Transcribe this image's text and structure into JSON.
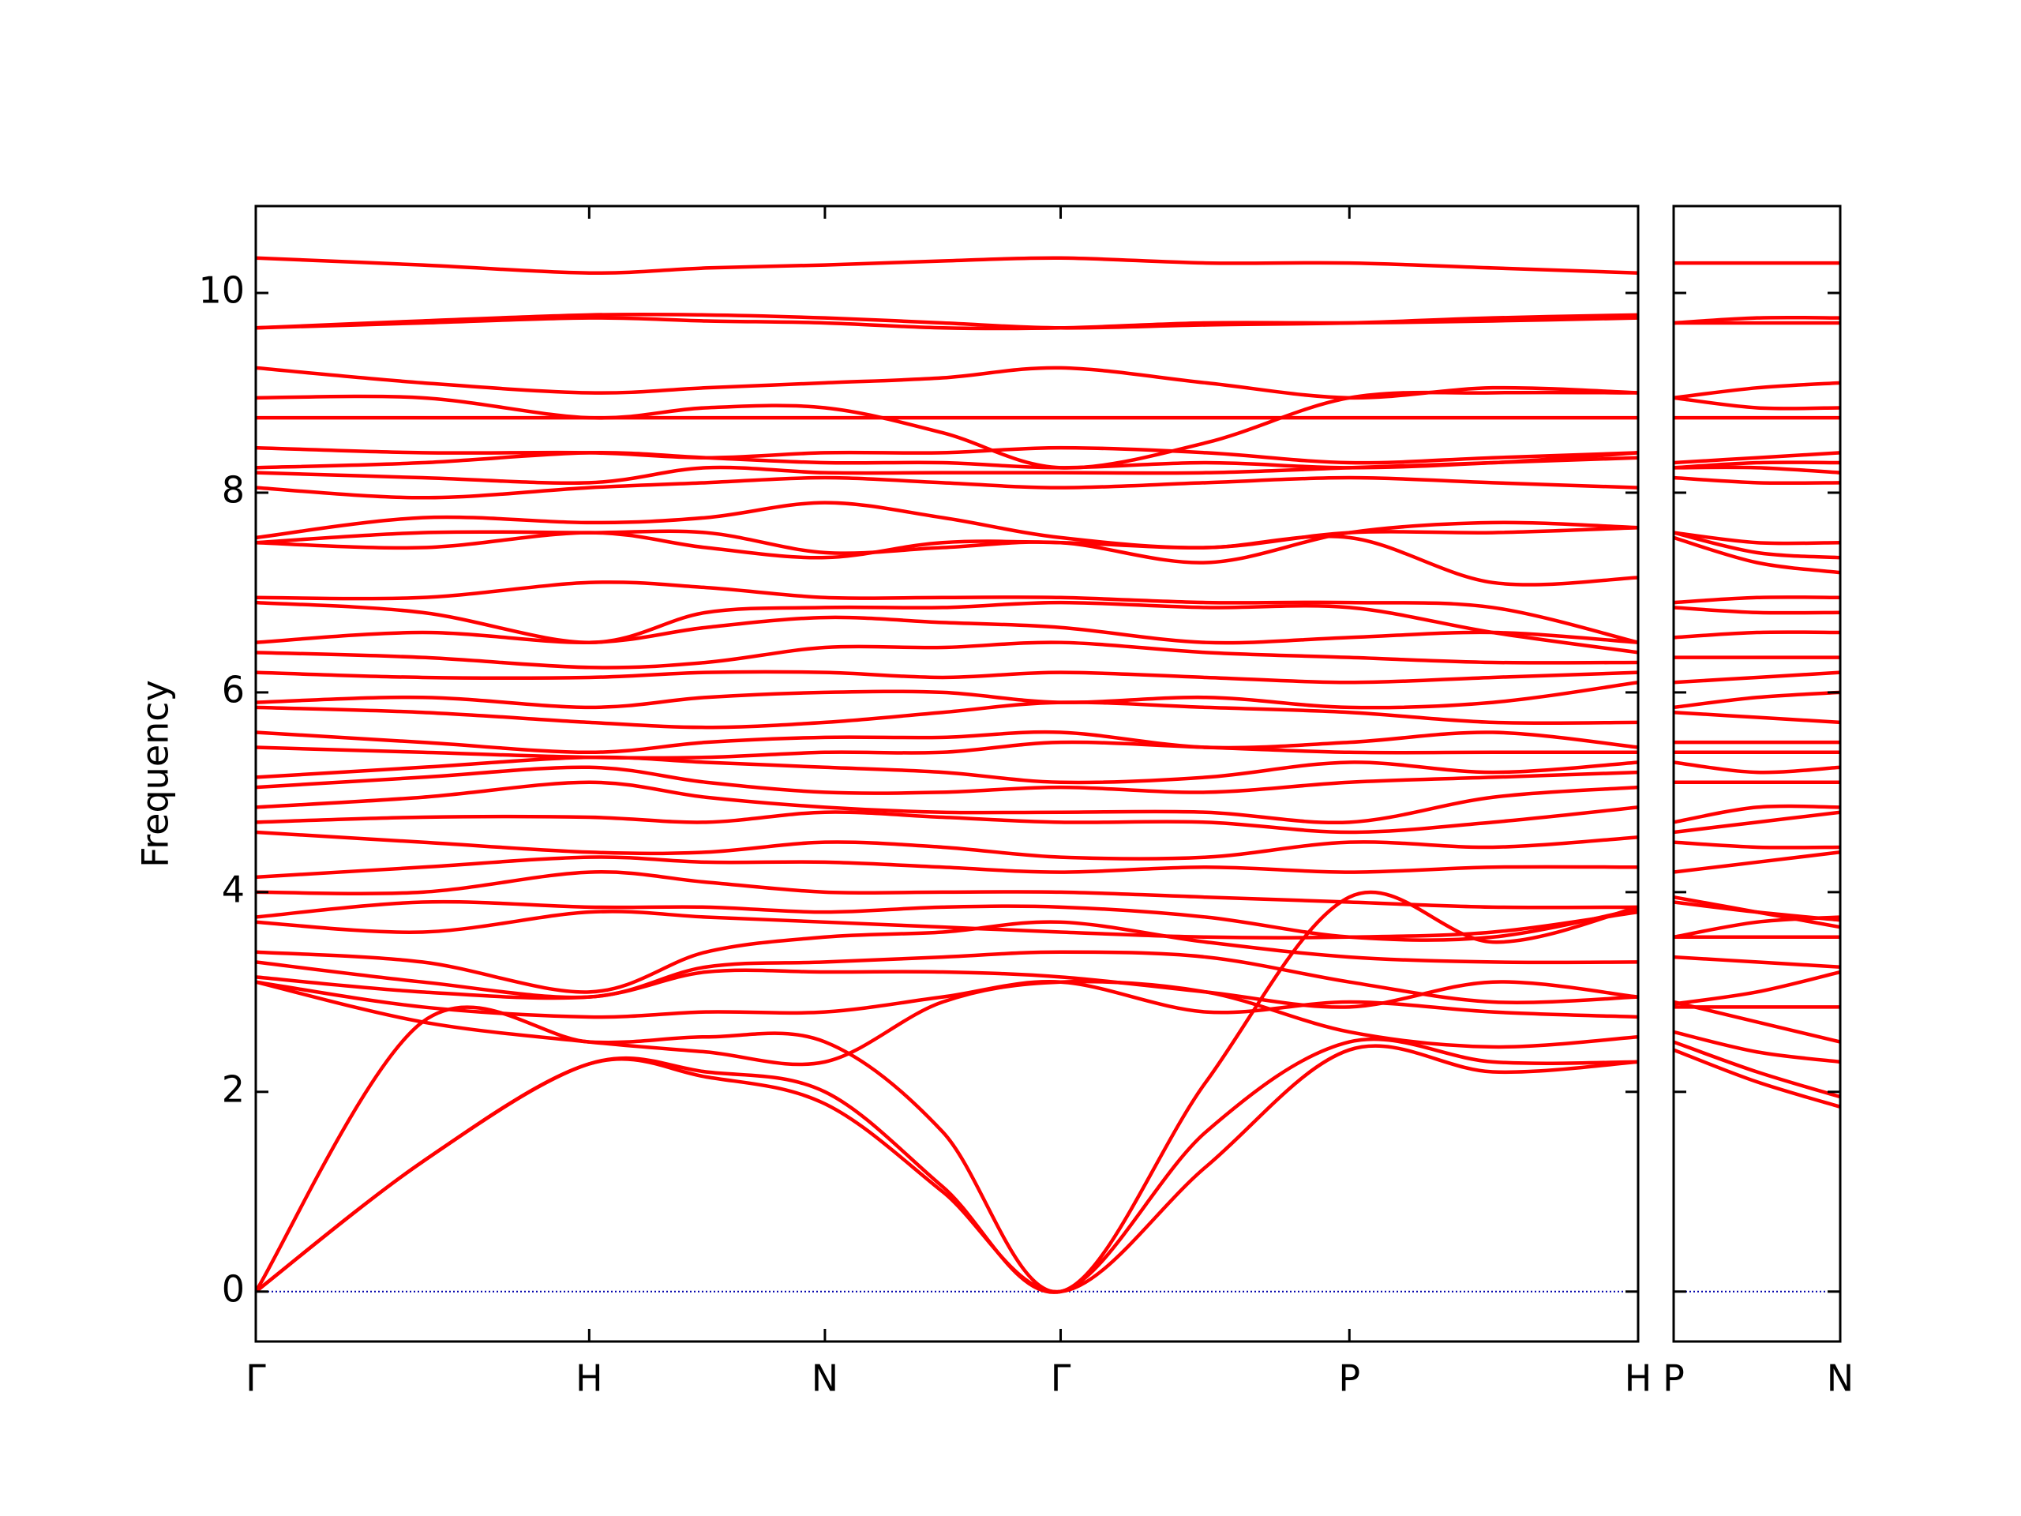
{
  "chart_data": [
    {
      "type": "line",
      "ylabel": "Frequency",
      "color": "#ff0000",
      "zero_line_color": "#0000aa",
      "xlim": [
        0,
        4.146
      ],
      "ylim": [
        -0.5,
        10.87
      ],
      "yticks": [
        0,
        2,
        4,
        6,
        8,
        10
      ],
      "ytick_labels": true,
      "xticks": [
        {
          "value": 0,
          "label": "Γ"
        },
        {
          "value": 1,
          "label": "H"
        },
        {
          "value": 1.707,
          "label": "N"
        },
        {
          "value": 2.414,
          "label": "Γ"
        },
        {
          "value": 3.28,
          "label": "P"
        },
        {
          "value": 4.146,
          "label": "H"
        }
      ],
      "x": [
        0,
        0.5,
        1,
        1.35,
        1.707,
        2.06,
        2.414,
        2.85,
        3.28,
        3.71,
        4.146
      ],
      "series": [
        {
          "values": [
            0,
            1.3,
            2.28,
            2.15,
            1.88,
            1.0,
            0,
            1.25,
            2.42,
            2.2,
            2.3
          ]
        },
        {
          "values": [
            0,
            1.3,
            2.28,
            2.2,
            2.0,
            1.05,
            0,
            1.6,
            2.5,
            2.3,
            2.3
          ]
        },
        {
          "values": [
            0,
            2.7,
            2.5,
            2.55,
            2.5,
            1.6,
            0,
            2.1,
            3.95,
            3.5,
            3.85
          ]
        },
        {
          "values": [
            3.1,
            2.7,
            2.5,
            2.4,
            2.3,
            2.9,
            3.1,
            3.0,
            2.6,
            2.45,
            2.55
          ]
        },
        {
          "values": [
            3.1,
            2.85,
            2.75,
            2.8,
            2.8,
            2.95,
            3.1,
            2.8,
            2.9,
            2.8,
            2.75
          ]
        },
        {
          "values": [
            3.15,
            3.0,
            2.95,
            3.2,
            3.2,
            3.2,
            3.15,
            3.0,
            2.85,
            3.1,
            2.95
          ]
        },
        {
          "values": [
            3.3,
            3.1,
            2.95,
            3.25,
            3.3,
            3.35,
            3.4,
            3.35,
            3.1,
            2.9,
            2.95
          ]
        },
        {
          "values": [
            3.4,
            3.3,
            3.0,
            3.4,
            3.55,
            3.6,
            3.7,
            3.5,
            3.35,
            3.3,
            3.3
          ]
        },
        {
          "values": [
            3.7,
            3.6,
            3.8,
            3.75,
            3.7,
            3.65,
            3.6,
            3.55,
            3.55,
            3.6,
            3.8
          ]
        },
        {
          "values": [
            3.75,
            3.9,
            3.85,
            3.85,
            3.8,
            3.85,
            3.85,
            3.75,
            3.55,
            3.55,
            3.83
          ]
        },
        {
          "values": [
            4.0,
            4.0,
            4.2,
            4.1,
            4.0,
            4.0,
            4.0,
            3.95,
            3.9,
            3.85,
            3.85
          ]
        },
        {
          "values": [
            4.15,
            4.25,
            4.35,
            4.3,
            4.3,
            4.25,
            4.2,
            4.25,
            4.2,
            4.25,
            4.25
          ]
        },
        {
          "values": [
            4.6,
            4.5,
            4.4,
            4.4,
            4.5,
            4.45,
            4.35,
            4.35,
            4.5,
            4.45,
            4.55
          ]
        },
        {
          "values": [
            4.7,
            4.75,
            4.75,
            4.7,
            4.8,
            4.75,
            4.7,
            4.7,
            4.6,
            4.7,
            4.85
          ]
        },
        {
          "values": [
            4.85,
            4.95,
            5.1,
            4.95,
            4.85,
            4.8,
            4.8,
            4.8,
            4.7,
            4.95,
            5.05
          ]
        },
        {
          "values": [
            5.05,
            5.15,
            5.25,
            5.1,
            5.0,
            5.0,
            5.05,
            5.0,
            5.1,
            5.15,
            5.2
          ]
        },
        {
          "values": [
            5.15,
            5.25,
            5.35,
            5.3,
            5.25,
            5.2,
            5.1,
            5.15,
            5.3,
            5.2,
            5.3
          ]
        },
        {
          "values": [
            5.45,
            5.4,
            5.35,
            5.35,
            5.4,
            5.4,
            5.5,
            5.45,
            5.4,
            5.4,
            5.4
          ]
        },
        {
          "values": [
            5.6,
            5.5,
            5.4,
            5.5,
            5.55,
            5.55,
            5.6,
            5.45,
            5.5,
            5.6,
            5.45
          ]
        },
        {
          "values": [
            5.85,
            5.8,
            5.7,
            5.65,
            5.7,
            5.8,
            5.9,
            5.85,
            5.8,
            5.7,
            5.7
          ]
        },
        {
          "values": [
            5.9,
            5.95,
            5.85,
            5.95,
            6.0,
            6.0,
            5.9,
            5.95,
            5.85,
            5.9,
            6.1
          ]
        },
        {
          "values": [
            6.2,
            6.15,
            6.15,
            6.2,
            6.2,
            6.15,
            6.2,
            6.15,
            6.1,
            6.15,
            6.2
          ]
        },
        {
          "values": [
            6.4,
            6.35,
            6.25,
            6.3,
            6.45,
            6.45,
            6.5,
            6.4,
            6.35,
            6.3,
            6.3
          ]
        },
        {
          "values": [
            6.5,
            6.6,
            6.5,
            6.65,
            6.75,
            6.7,
            6.65,
            6.5,
            6.55,
            6.6,
            6.5
          ]
        },
        {
          "values": [
            6.9,
            6.8,
            6.5,
            6.8,
            6.85,
            6.85,
            6.9,
            6.85,
            6.85,
            6.6,
            6.4
          ]
        },
        {
          "values": [
            6.95,
            6.95,
            7.1,
            7.05,
            6.95,
            6.95,
            6.95,
            6.9,
            6.9,
            6.85,
            6.5
          ]
        },
        {
          "values": [
            7.5,
            7.45,
            7.6,
            7.45,
            7.35,
            7.5,
            7.5,
            7.45,
            7.55,
            7.1,
            7.15
          ]
        },
        {
          "values": [
            7.5,
            7.6,
            7.6,
            7.6,
            7.4,
            7.45,
            7.5,
            7.3,
            7.6,
            7.7,
            7.65
          ]
        },
        {
          "values": [
            7.55,
            7.75,
            7.7,
            7.75,
            7.9,
            7.75,
            7.55,
            7.45,
            7.6,
            7.6,
            7.65
          ]
        },
        {
          "values": [
            8.05,
            7.95,
            8.05,
            8.1,
            8.15,
            8.1,
            8.05,
            8.1,
            8.15,
            8.1,
            8.05
          ]
        },
        {
          "values": [
            8.2,
            8.15,
            8.1,
            8.25,
            8.2,
            8.2,
            8.2,
            8.2,
            8.25,
            8.3,
            8.35
          ]
        },
        {
          "values": [
            8.25,
            8.3,
            8.4,
            8.35,
            8.3,
            8.3,
            8.25,
            8.3,
            8.25,
            8.3,
            8.4
          ]
        },
        {
          "values": [
            8.45,
            8.4,
            8.4,
            8.35,
            8.4,
            8.4,
            8.45,
            8.4,
            8.3,
            8.35,
            8.4
          ]
        },
        {
          "values": [
            8.75,
            8.75,
            8.75,
            8.75,
            8.75,
            8.75,
            8.75,
            8.75,
            8.75,
            8.75,
            8.75
          ]
        },
        {
          "values": [
            8.95,
            8.95,
            8.75,
            8.85,
            8.85,
            8.6,
            8.25,
            8.5,
            8.95,
            9.0,
            9.0
          ]
        },
        {
          "values": [
            9.25,
            9.1,
            9.0,
            9.05,
            9.1,
            9.15,
            9.25,
            9.1,
            8.95,
            9.05,
            9.0
          ]
        },
        {
          "values": [
            9.65,
            9.7,
            9.75,
            9.72,
            9.7,
            9.65,
            9.65,
            9.7,
            9.7,
            9.72,
            9.75
          ]
        },
        {
          "values": [
            9.65,
            9.72,
            9.78,
            9.78,
            9.75,
            9.7,
            9.65,
            9.68,
            9.7,
            9.75,
            9.78
          ]
        },
        {
          "values": [
            10.35,
            10.28,
            10.2,
            10.25,
            10.28,
            10.32,
            10.35,
            10.3,
            10.3,
            10.25,
            10.2
          ]
        }
      ]
    },
    {
      "type": "line",
      "color": "#ff0000",
      "zero_line_color": "#0000aa",
      "xlim": [
        0,
        0.5
      ],
      "ylim": [
        -0.5,
        10.87
      ],
      "yticks": [
        0,
        2,
        4,
        6,
        8,
        10
      ],
      "ytick_labels": false,
      "xticks": [
        {
          "value": 0,
          "label": "P"
        },
        {
          "value": 0.5,
          "label": "N"
        }
      ],
      "x": [
        0,
        0.25,
        0.5
      ],
      "series": [
        {
          "values": [
            2.42,
            2.1,
            1.85
          ]
        },
        {
          "values": [
            2.5,
            2.2,
            1.95
          ]
        },
        {
          "values": [
            3.95,
            3.8,
            3.65
          ]
        },
        {
          "values": [
            2.6,
            2.4,
            2.3
          ]
        },
        {
          "values": [
            2.9,
            2.7,
            2.5
          ]
        },
        {
          "values": [
            2.85,
            2.85,
            2.85
          ]
        },
        {
          "values": [
            2.88,
            3.0,
            3.2
          ]
        },
        {
          "values": [
            3.35,
            3.3,
            3.25
          ]
        },
        {
          "values": [
            3.55,
            3.55,
            3.55
          ]
        },
        {
          "values": [
            3.55,
            3.7,
            3.75
          ]
        },
        {
          "values": [
            3.9,
            3.8,
            3.72
          ]
        },
        {
          "values": [
            4.2,
            4.3,
            4.4
          ]
        },
        {
          "values": [
            4.5,
            4.45,
            4.45
          ]
        },
        {
          "values": [
            4.6,
            4.7,
            4.8
          ]
        },
        {
          "values": [
            4.7,
            4.85,
            4.85
          ]
        },
        {
          "values": [
            5.1,
            5.1,
            5.1
          ]
        },
        {
          "values": [
            5.3,
            5.2,
            5.25
          ]
        },
        {
          "values": [
            5.4,
            5.4,
            5.4
          ]
        },
        {
          "values": [
            5.5,
            5.5,
            5.5
          ]
        },
        {
          "values": [
            5.8,
            5.75,
            5.7
          ]
        },
        {
          "values": [
            5.85,
            5.95,
            6.0
          ]
        },
        {
          "values": [
            6.1,
            6.15,
            6.2
          ]
        },
        {
          "values": [
            6.35,
            6.35,
            6.35
          ]
        },
        {
          "values": [
            6.55,
            6.6,
            6.6
          ]
        },
        {
          "values": [
            6.85,
            6.8,
            6.8
          ]
        },
        {
          "values": [
            6.9,
            6.95,
            6.95
          ]
        },
        {
          "values": [
            7.55,
            7.3,
            7.2
          ]
        },
        {
          "values": [
            7.6,
            7.4,
            7.35
          ]
        },
        {
          "values": [
            7.6,
            7.5,
            7.5
          ]
        },
        {
          "values": [
            8.15,
            8.1,
            8.1
          ]
        },
        {
          "values": [
            8.25,
            8.25,
            8.2
          ]
        },
        {
          "values": [
            8.25,
            8.3,
            8.3
          ]
        },
        {
          "values": [
            8.3,
            8.35,
            8.4
          ]
        },
        {
          "values": [
            8.75,
            8.75,
            8.75
          ]
        },
        {
          "values": [
            8.95,
            8.85,
            8.85
          ]
        },
        {
          "values": [
            8.95,
            9.05,
            9.1
          ]
        },
        {
          "values": [
            9.7,
            9.7,
            9.7
          ]
        },
        {
          "values": [
            9.7,
            9.75,
            9.75
          ]
        },
        {
          "values": [
            10.3,
            10.3,
            10.3
          ]
        }
      ]
    }
  ]
}
